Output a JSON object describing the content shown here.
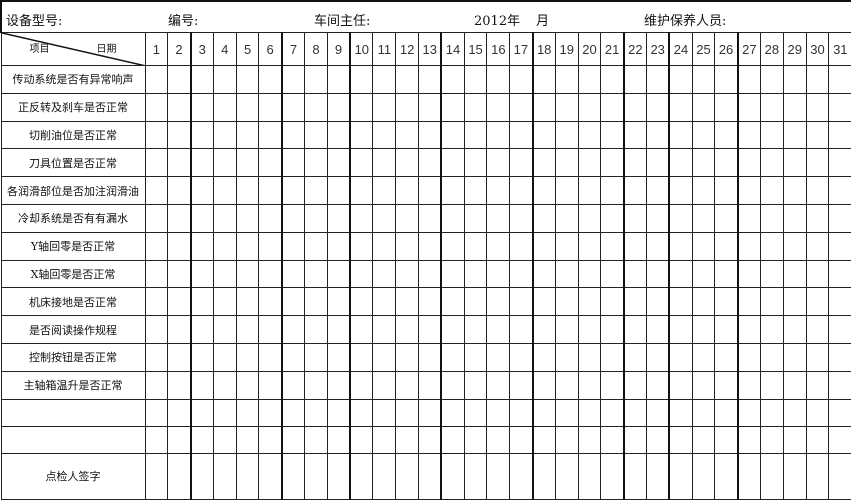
{
  "header": {
    "model_label": "设备型号:",
    "number_label": "编号:",
    "supervisor_label": "车间主任:",
    "year": "2012年",
    "month_label": "月",
    "maintainer_label": "维护保养人员:"
  },
  "table": {
    "corner_item": "项目",
    "corner_date": "日期",
    "days": [
      "1",
      "2",
      "3",
      "4",
      "5",
      "6",
      "7",
      "8",
      "9",
      "10",
      "11",
      "12",
      "13",
      "14",
      "15",
      "16",
      "17",
      "18",
      "19",
      "20",
      "21",
      "22",
      "23",
      "24",
      "25",
      "26",
      "27",
      "28",
      "29",
      "30",
      "31"
    ],
    "items": [
      "传动系统是否有异常响声",
      "正反转及刹车是否正常",
      "切削油位是否正常",
      "刀具位置是否正常",
      "各润滑部位是否加注润滑油",
      "冷却系统是否有有漏水",
      "Y轴回零是否正常",
      "X轴回零是否正常",
      "机床接地是否正常",
      "是否阅读操作规程",
      "控制按钮是否正常",
      "主轴箱温升是否正常",
      "",
      ""
    ],
    "signature_label": "点检人签字"
  }
}
